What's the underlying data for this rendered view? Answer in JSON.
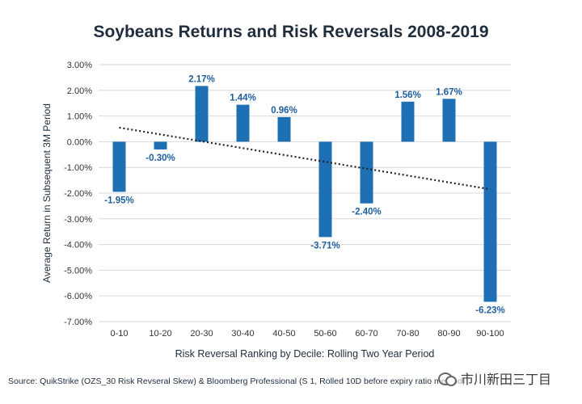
{
  "chart_data": {
    "type": "bar",
    "title": "Soybeans Returns and Risk Reversals 2008-2019",
    "xlabel": "Risk Reversal Ranking by Decile: Rolling Two Year Period",
    "ylabel": "Average Return in Subsequent 3M Period",
    "categories": [
      "0-10",
      "10-20",
      "20-30",
      "30-40",
      "40-50",
      "50-60",
      "60-70",
      "70-80",
      "80-90",
      "90-100"
    ],
    "values": [
      -1.95,
      -0.3,
      2.17,
      1.44,
      0.96,
      -3.71,
      -2.4,
      1.56,
      1.67,
      -6.23
    ],
    "value_labels": [
      "-1.95%",
      "-0.30%",
      "2.17%",
      "1.44%",
      "0.96%",
      "-3.71%",
      "-2.40%",
      "1.56%",
      "1.67%",
      "-6.23%"
    ],
    "ylim": [
      -7.0,
      3.0
    ],
    "yticks": [
      3.0,
      2.0,
      1.0,
      0.0,
      -1.0,
      -2.0,
      -3.0,
      -4.0,
      -5.0,
      -6.0,
      -7.0
    ],
    "ytick_labels": [
      "3.00%",
      "2.00%",
      "1.00%",
      "0.00%",
      "-1.00%",
      "-2.00%",
      "-3.00%",
      "-4.00%",
      "-5.00%",
      "-6.00%",
      "-7.00%"
    ],
    "grid": true,
    "trendline": {
      "start": 0.55,
      "end": -1.85
    },
    "colors": {
      "bar": "#1f6fb5",
      "label": "#1f5f9e",
      "grid": "#d9d9d9",
      "axis_text": "#333333",
      "trend": "#222222"
    }
  },
  "source_note": "Source: QuikStrike (OZS_30 Risk Revseral Skew) & Bloomberg Professional (S 1, Rolled 10D before expiry ratio method)",
  "watermark": "市川新田三丁目"
}
